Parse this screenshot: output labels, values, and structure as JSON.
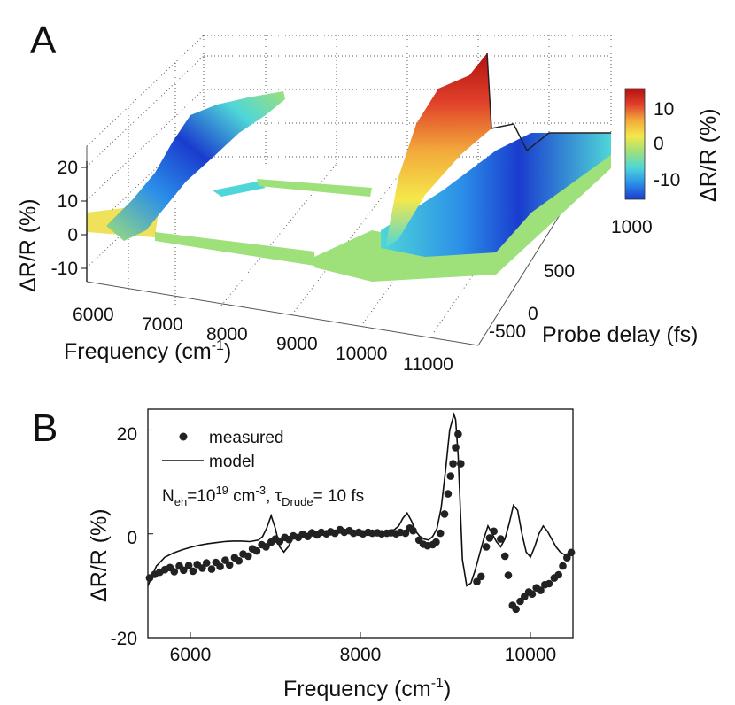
{
  "panel_a": {
    "letter": "A",
    "z_axis_label": "ΔR/R (%)",
    "z_ticks": [
      "20",
      "10",
      "0",
      "-10"
    ],
    "x_axis_label": "Frequency (cm",
    "x_axis_sup": "-1",
    "x_axis_close": ")",
    "x_ticks": [
      "6000",
      "7000",
      "8000",
      "9000",
      "10000",
      "11000"
    ],
    "y_axis_label": "Probe delay (fs)",
    "y_ticks": [
      "-500",
      "0",
      "500",
      "1000"
    ],
    "colorbar_label": "ΔR/R (%)",
    "colorbar_ticks": [
      "10",
      "0",
      "-10"
    ],
    "colorbar_stops": [
      "#1a3ccf",
      "#2b8fe8",
      "#4fd6d8",
      "#9ee07a",
      "#f5e84a",
      "#f2a93b",
      "#e0402a",
      "#b3120f"
    ],
    "chart_data": {
      "type": "surface",
      "x_range": [
        5500,
        11500
      ],
      "y_range": [
        -500,
        1200
      ],
      "z_range": [
        -15,
        25
      ],
      "colorbar_range": [
        -13,
        13
      ]
    }
  },
  "panel_b": {
    "letter": "B",
    "legend_measured": "measured",
    "legend_model": "model",
    "annotation": {
      "n_main": "N",
      "n_sub": "eh",
      "eq1": "=10",
      "exp1": "19",
      "unit": " cm",
      "exp2": "-3",
      "sep": ", ",
      "tau": "τ",
      "tau_sub": "Drude",
      "eq2": "= 10 fs"
    },
    "y_axis_label": "ΔR/R (%)",
    "x_axis_label": "Frequency (cm",
    "x_axis_sup": "-1",
    "x_axis_close": ")",
    "x_ticks": [
      "6000",
      "8000",
      "10000"
    ],
    "y_ticks": [
      "20",
      "0",
      "-20"
    ],
    "chart_data": {
      "type": "scatter",
      "xlim": [
        5500,
        10500
      ],
      "ylim": [
        -20,
        24
      ],
      "x_ticks": [
        6000,
        8000,
        10000
      ],
      "y_ticks": [
        20,
        0,
        -20
      ],
      "series": [
        {
          "name": "measured",
          "points": [
            [
              5520,
              -8.5
            ],
            [
              5580,
              -7.8
            ],
            [
              5640,
              -7.4
            ],
            [
              5700,
              -6.9
            ],
            [
              5760,
              -6.5
            ],
            [
              5810,
              -7.3
            ],
            [
              5870,
              -6.2
            ],
            [
              5920,
              -7.0
            ],
            [
              5980,
              -6.1
            ],
            [
              6030,
              -7.2
            ],
            [
              6080,
              -5.9
            ],
            [
              6140,
              -6.6
            ],
            [
              6190,
              -5.6
            ],
            [
              6250,
              -6.8
            ],
            [
              6300,
              -5.5
            ],
            [
              6350,
              -6.3
            ],
            [
              6410,
              -5.1
            ],
            [
              6460,
              -6.0
            ],
            [
              6520,
              -4.6
            ],
            [
              6570,
              -5.2
            ],
            [
              6620,
              -3.9
            ],
            [
              6680,
              -4.3
            ],
            [
              6730,
              -2.9
            ],
            [
              6780,
              -3.3
            ],
            [
              6840,
              -2.1
            ],
            [
              6890,
              -2.5
            ],
            [
              6950,
              -1.6
            ],
            [
              7000,
              -1.0
            ],
            [
              7050,
              -1.5
            ],
            [
              7110,
              -0.7
            ],
            [
              7160,
              -1.1
            ],
            [
              7210,
              -0.4
            ],
            [
              7270,
              -0.7
            ],
            [
              7320,
              -0.1
            ],
            [
              7380,
              -0.5
            ],
            [
              7430,
              0.2
            ],
            [
              7490,
              -0.2
            ],
            [
              7540,
              0.3
            ],
            [
              7600,
              0.0
            ],
            [
              7650,
              0.4
            ],
            [
              7700,
              0.1
            ],
            [
              7760,
              0.8
            ],
            [
              7810,
              0.3
            ],
            [
              7870,
              0.6
            ],
            [
              7920,
              0.1
            ],
            [
              7980,
              0.3
            ],
            [
              8030,
              0.0
            ],
            [
              8090,
              0.3
            ],
            [
              8140,
              0.1
            ],
            [
              8200,
              0.2
            ],
            [
              8250,
              0.0
            ],
            [
              8310,
              0.1
            ],
            [
              8360,
              0.2
            ],
            [
              8420,
              0.0
            ],
            [
              8470,
              0.3
            ],
            [
              8530,
              0.1
            ],
            [
              8580,
              1.1
            ],
            [
              8620,
              0.6
            ],
            [
              8690,
              -1.2
            ],
            [
              8740,
              -2.0
            ],
            [
              8790,
              -2.3
            ],
            [
              8850,
              -2.1
            ],
            [
              8890,
              -1.6
            ],
            [
              8940,
              0.1
            ],
            [
              8990,
              3.8
            ],
            [
              9030,
              7.7
            ],
            [
              9060,
              11.1
            ],
            [
              9090,
              13.5
            ],
            [
              9120,
              16.6
            ],
            [
              9150,
              19.2
            ],
            [
              9180,
              13.5
            ],
            [
              9370,
              -9.2
            ],
            [
              9420,
              -8.2
            ],
            [
              9480,
              -2.5
            ],
            [
              9520,
              -0.8
            ],
            [
              9570,
              0.5
            ],
            [
              9650,
              -1.0
            ],
            [
              9700,
              -4.3
            ],
            [
              9740,
              -8.0
            ],
            [
              9790,
              -13.8
            ],
            [
              9830,
              -14.5
            ],
            [
              9880,
              -13.0
            ],
            [
              9930,
              -12.1
            ],
            [
              9980,
              -11.2
            ],
            [
              10020,
              -11.6
            ],
            [
              10070,
              -10.4
            ],
            [
              10120,
              -10.9
            ],
            [
              10170,
              -9.8
            ],
            [
              10220,
              -9.6
            ],
            [
              10280,
              -8.5
            ],
            [
              10330,
              -7.9
            ],
            [
              10380,
              -6.2
            ],
            [
              10430,
              -4.6
            ],
            [
              10480,
              -3.6
            ]
          ]
        },
        {
          "name": "model",
          "x": [
            5500,
            5600,
            5700,
            5800,
            5900,
            6000,
            6100,
            6200,
            6300,
            6400,
            6500,
            6600,
            6700,
            6800,
            6850,
            6900,
            6950,
            7000,
            7050,
            7100,
            7150,
            7200,
            7300,
            7400,
            7500,
            7600,
            7700,
            7800,
            7900,
            8000,
            8100,
            8200,
            8300,
            8400,
            8450,
            8500,
            8550,
            8600,
            8650,
            8700,
            8750,
            8800,
            8850,
            8900,
            8950,
            9000,
            9050,
            9100,
            9120,
            9150,
            9200,
            9250,
            9300,
            9350,
            9400,
            9450,
            9500,
            9550,
            9600,
            9650,
            9700,
            9750,
            9800,
            9850,
            9900,
            9950,
            10000,
            10050,
            10100,
            10150,
            10200,
            10250,
            10300,
            10350,
            10400,
            10450,
            10500
          ],
          "y": [
            -10,
            -6.2,
            -4.5,
            -3.7,
            -3.1,
            -2.6,
            -2.2,
            -1.9,
            -1.7,
            -1.5,
            -1.4,
            -1.4,
            -1.5,
            -1.2,
            -0.5,
            1.2,
            3.5,
            1.0,
            -2.5,
            -3.5,
            -2.5,
            -1.0,
            -0.5,
            -0.2,
            0.0,
            0.1,
            0.1,
            0.2,
            0.2,
            0.2,
            0.3,
            0.4,
            0.5,
            0.8,
            1.5,
            3.0,
            4.0,
            2.5,
            0.5,
            -0.5,
            -1.0,
            -1.2,
            -0.5,
            1.0,
            5.0,
            12.0,
            20.0,
            23.0,
            22.0,
            15.0,
            -5.0,
            -10.0,
            -9.5,
            -7.0,
            -4.0,
            -1.0,
            1.5,
            0.0,
            -1.5,
            -2.5,
            -1.0,
            2.0,
            5.5,
            4.5,
            0.0,
            -3.5,
            -4.5,
            -2.5,
            0.0,
            1.5,
            0.5,
            -1.0,
            -2.5,
            -3.5,
            -4.0,
            -3.8,
            -3.5
          ]
        }
      ]
    }
  }
}
